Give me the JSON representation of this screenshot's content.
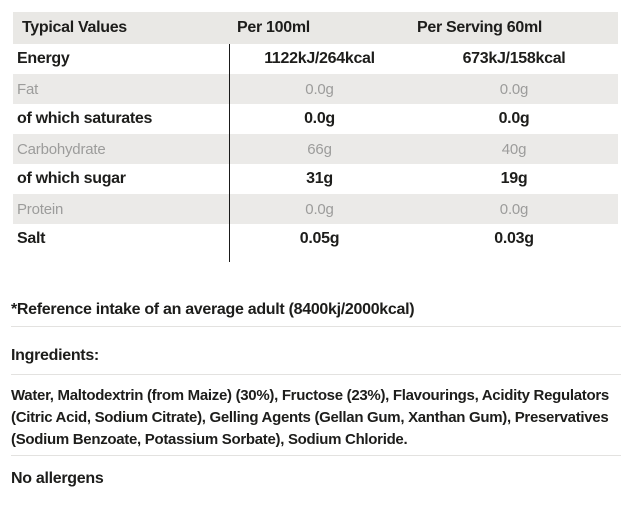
{
  "table": {
    "headers": [
      "Typical Values",
      "Per 100ml",
      "Per Serving 60ml"
    ],
    "rows": [
      {
        "label": "Energy",
        "per100ml": "1122kJ/264kcal",
        "per_serving": "673kJ/158kcal",
        "emphasis": true
      },
      {
        "label": "Fat",
        "per100ml": "0.0g",
        "per_serving": "0.0g",
        "emphasis": false
      },
      {
        "label": "of which saturates",
        "per100ml": "0.0g",
        "per_serving": "0.0g",
        "emphasis": true
      },
      {
        "label": "Carbohydrate",
        "per100ml": "66g",
        "per_serving": "40g",
        "emphasis": false
      },
      {
        "label": "of which sugar",
        "per100ml": "31g",
        "per_serving": "19g",
        "emphasis": true
      },
      {
        "label": "Protein",
        "per100ml": "0.0g",
        "per_serving": "0.0g",
        "emphasis": false
      },
      {
        "label": "Salt",
        "per100ml": "0.05g",
        "per_serving": "0.03g",
        "emphasis": true
      }
    ]
  },
  "notes": {
    "reference": "*Reference intake of an average adult (8400kj/2000kcal)",
    "ingredients_heading": "Ingredients:",
    "ingredients_text": "Water, Maltodextrin (from Maize) (30%), Fructose (23%), Flavourings, Acidity Regulators (Citric Acid, Sodium Citrate), Gelling Agents (Gellan Gum, Xanthan Gum), Preservatives (Sodium Benzoate, Potassium Sorbate), Sodium Chloride.",
    "allergens": "No allergens"
  },
  "colors": {
    "header_bg": "#e9e8e5",
    "stripe_bg": "#ebeae8",
    "muted_text": "#9c9c9b",
    "dark_text": "#1d1d1b",
    "divider": "#e3e2e0",
    "column_rule": "#1a1a1a"
  }
}
